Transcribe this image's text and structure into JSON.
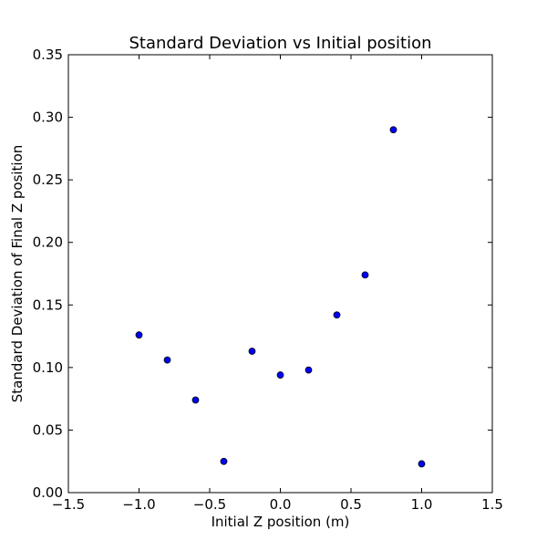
{
  "chart_data": {
    "type": "scatter",
    "title": "Standard Deviation vs Initial position",
    "xlabel": "Initial Z position (m)",
    "ylabel": "Standard Deviation of Final Z position",
    "xlim": [
      -1.5,
      1.5
    ],
    "ylim": [
      0.0,
      0.35
    ],
    "xticks": [
      -1.5,
      -1.0,
      -0.5,
      0.0,
      0.5,
      1.0,
      1.5
    ],
    "xtick_labels": [
      "−1.5",
      "−1.0",
      "−0.5",
      "0.0",
      "0.5",
      "1.0",
      "1.5"
    ],
    "yticks": [
      0.0,
      0.05,
      0.1,
      0.15,
      0.2,
      0.25,
      0.3,
      0.35
    ],
    "ytick_labels": [
      "0.00",
      "0.05",
      "0.10",
      "0.15",
      "0.20",
      "0.25",
      "0.30",
      "0.35"
    ],
    "grid": false,
    "marker_color": "#0000ff",
    "marker_edge_color": "#000000",
    "series": [
      {
        "points": [
          {
            "x": -1.0,
            "y": 0.126
          },
          {
            "x": -0.8,
            "y": 0.106
          },
          {
            "x": -0.6,
            "y": 0.074
          },
          {
            "x": -0.4,
            "y": 0.025
          },
          {
            "x": -0.2,
            "y": 0.113
          },
          {
            "x": 0.0,
            "y": 0.094
          },
          {
            "x": 0.2,
            "y": 0.098
          },
          {
            "x": 0.4,
            "y": 0.142
          },
          {
            "x": 0.6,
            "y": 0.174
          },
          {
            "x": 0.8,
            "y": 0.29
          },
          {
            "x": 1.0,
            "y": 0.023
          }
        ]
      }
    ]
  }
}
